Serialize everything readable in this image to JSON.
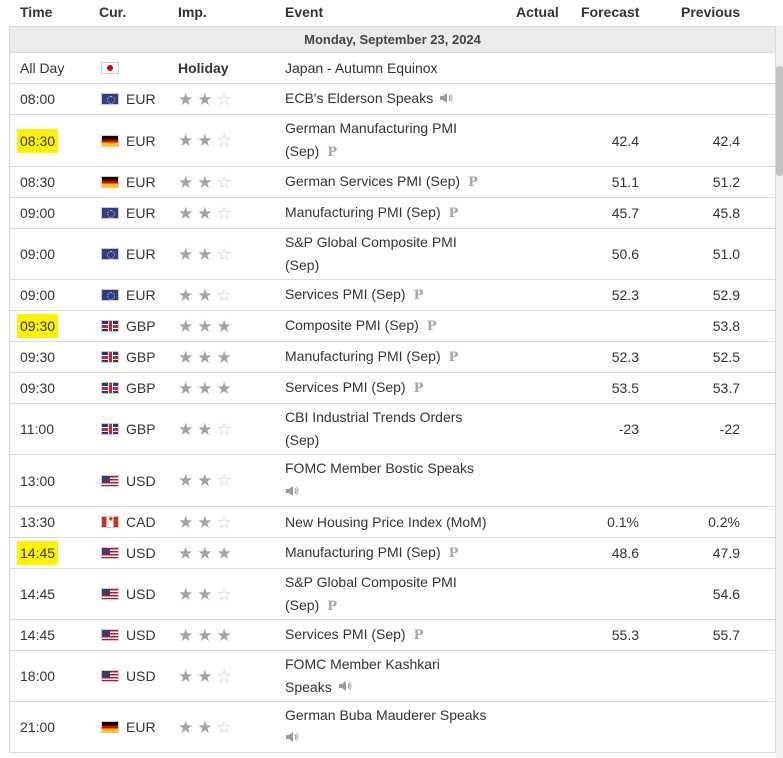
{
  "headers": {
    "time": "Time",
    "cur": "Cur.",
    "imp": "Imp.",
    "event": "Event",
    "actual": "Actual",
    "forecast": "Forecast",
    "previous": "Previous"
  },
  "date_label": "Monday, September 23, 2024",
  "colors": {
    "highlight": "#fff200",
    "star_on": "#a3a3a3",
    "star_off": "#c8c8c8"
  },
  "rows": [
    {
      "time": "All Day",
      "flag": "jp",
      "currency": "",
      "importance_label": "Holiday",
      "stars": 0,
      "event_lines": [
        "Japan - Autumn Equinox"
      ],
      "icon": "",
      "actual": "",
      "forecast": "",
      "previous": "",
      "highlight": false
    },
    {
      "time": "08:00",
      "flag": "eu",
      "currency": "EUR",
      "stars": 2,
      "event_lines": [
        "ECB's Elderson Speaks"
      ],
      "icon": "speaker-icon",
      "actual": "",
      "forecast": "",
      "previous": "",
      "highlight": false
    },
    {
      "time": "08:30",
      "flag": "de",
      "currency": "EUR",
      "stars": 2,
      "event_lines": [
        "German Manufacturing PMI",
        "(Sep)"
      ],
      "icon": "preliminary-icon",
      "actual": "",
      "forecast": "42.4",
      "previous": "42.4",
      "highlight": true
    },
    {
      "time": "08:30",
      "flag": "de",
      "currency": "EUR",
      "stars": 2,
      "event_lines": [
        "German Services PMI (Sep)"
      ],
      "icon": "preliminary-icon",
      "actual": "",
      "forecast": "51.1",
      "previous": "51.2",
      "highlight": false
    },
    {
      "time": "09:00",
      "flag": "eu",
      "currency": "EUR",
      "stars": 2,
      "event_lines": [
        "Manufacturing PMI (Sep)"
      ],
      "icon": "preliminary-icon",
      "actual": "",
      "forecast": "45.7",
      "previous": "45.8",
      "highlight": false
    },
    {
      "time": "09:00",
      "flag": "eu",
      "currency": "EUR",
      "stars": 2,
      "event_lines": [
        "S&P Global Composite PMI",
        "(Sep)"
      ],
      "icon": "",
      "actual": "",
      "forecast": "50.6",
      "previous": "51.0",
      "highlight": false
    },
    {
      "time": "09:00",
      "flag": "eu",
      "currency": "EUR",
      "stars": 2,
      "event_lines": [
        "Services PMI (Sep)"
      ],
      "icon": "preliminary-icon",
      "actual": "",
      "forecast": "52.3",
      "previous": "52.9",
      "highlight": false
    },
    {
      "time": "09:30",
      "flag": "gb",
      "currency": "GBP",
      "stars": 3,
      "event_lines": [
        "Composite PMI (Sep)"
      ],
      "icon": "preliminary-icon",
      "actual": "",
      "forecast": "",
      "previous": "53.8",
      "highlight": true
    },
    {
      "time": "09:30",
      "flag": "gb",
      "currency": "GBP",
      "stars": 3,
      "event_lines": [
        "Manufacturing PMI (Sep)"
      ],
      "icon": "preliminary-icon",
      "actual": "",
      "forecast": "52.3",
      "previous": "52.5",
      "highlight": false
    },
    {
      "time": "09:30",
      "flag": "gb",
      "currency": "GBP",
      "stars": 3,
      "event_lines": [
        "Services PMI (Sep)"
      ],
      "icon": "preliminary-icon",
      "actual": "",
      "forecast": "53.5",
      "previous": "53.7",
      "highlight": false
    },
    {
      "time": "11:00",
      "flag": "gb",
      "currency": "GBP",
      "stars": 2,
      "event_lines": [
        "CBI Industrial Trends Orders",
        "(Sep)"
      ],
      "icon": "",
      "actual": "",
      "forecast": "-23",
      "previous": "-22",
      "highlight": false
    },
    {
      "time": "13:00",
      "flag": "us",
      "currency": "USD",
      "stars": 2,
      "event_lines": [
        "FOMC Member Bostic Speaks",
        ""
      ],
      "icon": "speaker-icon",
      "actual": "",
      "forecast": "",
      "previous": "",
      "highlight": false
    },
    {
      "time": "13:30",
      "flag": "ca",
      "currency": "CAD",
      "stars": 2,
      "event_lines": [
        "New Housing Price Index (MoM)"
      ],
      "icon": "",
      "actual": "",
      "forecast": "0.1%",
      "previous": "0.2%",
      "highlight": false
    },
    {
      "time": "14:45",
      "flag": "us",
      "currency": "USD",
      "stars": 3,
      "event_lines": [
        "Manufacturing PMI (Sep)"
      ],
      "icon": "preliminary-icon",
      "actual": "",
      "forecast": "48.6",
      "previous": "47.9",
      "highlight": true
    },
    {
      "time": "14:45",
      "flag": "us",
      "currency": "USD",
      "stars": 2,
      "event_lines": [
        "S&P Global Composite PMI",
        "(Sep)"
      ],
      "icon": "preliminary-icon",
      "actual": "",
      "forecast": "",
      "previous": "54.6",
      "highlight": false
    },
    {
      "time": "14:45",
      "flag": "us",
      "currency": "USD",
      "stars": 3,
      "event_lines": [
        "Services PMI (Sep)"
      ],
      "icon": "preliminary-icon",
      "actual": "",
      "forecast": "55.3",
      "previous": "55.7",
      "highlight": false
    },
    {
      "time": "18:00",
      "flag": "us",
      "currency": "USD",
      "stars": 2,
      "event_lines": [
        "FOMC Member Kashkari",
        "Speaks"
      ],
      "icon": "speaker-icon",
      "actual": "",
      "forecast": "",
      "previous": "",
      "highlight": false
    },
    {
      "time": "21:00",
      "flag": "de",
      "currency": "EUR",
      "stars": 2,
      "event_lines": [
        "German Buba Mauderer Speaks",
        ""
      ],
      "icon": "speaker-icon",
      "actual": "",
      "forecast": "",
      "previous": "",
      "highlight": false
    }
  ]
}
